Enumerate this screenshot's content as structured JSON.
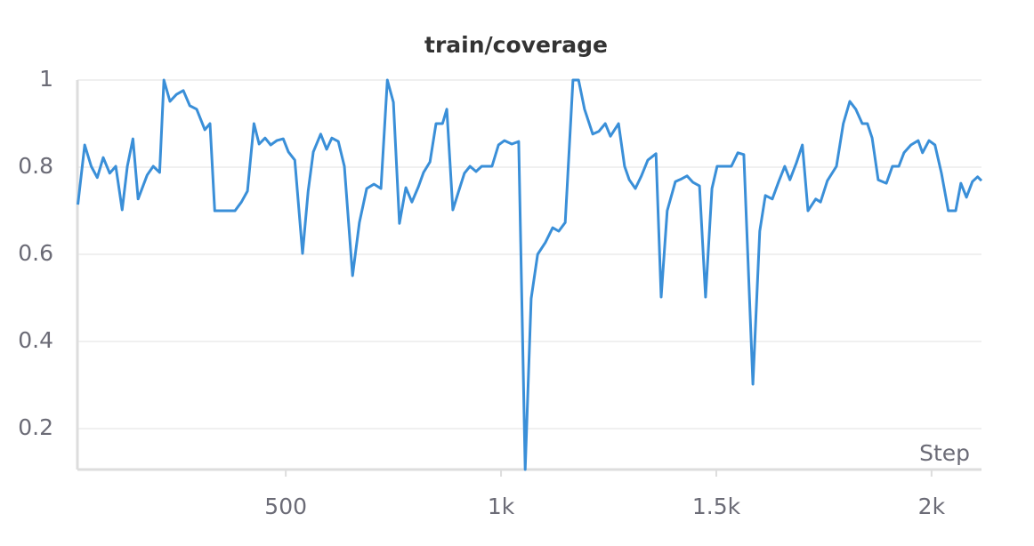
{
  "chart_data": {
    "type": "line",
    "title": "train/coverage",
    "x_label": "Step",
    "x": [
      17,
      33,
      48,
      62,
      76,
      91,
      105,
      120,
      132,
      145,
      157,
      178,
      192,
      207,
      217,
      231,
      246,
      262,
      277,
      293,
      312,
      324,
      335,
      382,
      397,
      411,
      426,
      438,
      452,
      465,
      479,
      494,
      506,
      521,
      539,
      552,
      564,
      581,
      595,
      607,
      622,
      636,
      655,
      671,
      688,
      705,
      721,
      736,
      750,
      764,
      779,
      793,
      808,
      820,
      835,
      849,
      864,
      874,
      888,
      903,
      915,
      928,
      942,
      955,
      979,
      994,
      1008,
      1025,
      1041,
      1056,
      1070,
      1085,
      1103,
      1120,
      1134,
      1149,
      1167,
      1180,
      1194,
      1213,
      1227,
      1242,
      1254,
      1273,
      1287,
      1298,
      1312,
      1326,
      1341,
      1360,
      1372,
      1386,
      1405,
      1419,
      1432,
      1446,
      1461,
      1475,
      1490,
      1502,
      1535,
      1550,
      1564,
      1585,
      1601,
      1614,
      1630,
      1645,
      1659,
      1671,
      1686,
      1700,
      1713,
      1731,
      1742,
      1758,
      1779,
      1795,
      1810,
      1824,
      1839,
      1851,
      1862,
      1876,
      1895,
      1909,
      1924,
      1936,
      1952,
      1969,
      1979,
      1994,
      2008,
      2023,
      2039,
      2056,
      2068,
      2081,
      2095,
      2107,
      2116
    ],
    "series": [
      {
        "name": "train/coverage",
        "color": "#3a8fd8",
        "values": [
          0.714,
          0.851,
          0.802,
          0.776,
          0.822,
          0.786,
          0.802,
          0.702,
          0.802,
          0.865,
          0.727,
          0.782,
          0.802,
          0.788,
          1.0,
          0.951,
          0.967,
          0.976,
          0.941,
          0.933,
          0.886,
          0.9,
          0.7,
          0.7,
          0.72,
          0.745,
          0.9,
          0.853,
          0.867,
          0.851,
          0.861,
          0.865,
          0.835,
          0.816,
          0.602,
          0.745,
          0.835,
          0.876,
          0.841,
          0.867,
          0.859,
          0.802,
          0.551,
          0.673,
          0.751,
          0.761,
          0.751,
          1.0,
          0.949,
          0.671,
          0.753,
          0.72,
          0.755,
          0.788,
          0.812,
          0.9,
          0.9,
          0.933,
          0.702,
          0.749,
          0.786,
          0.802,
          0.79,
          0.802,
          0.802,
          0.851,
          0.861,
          0.853,
          0.859,
          0.106,
          0.498,
          0.6,
          0.627,
          0.661,
          0.653,
          0.673,
          1.0,
          1.0,
          0.933,
          0.876,
          0.882,
          0.9,
          0.871,
          0.9,
          0.802,
          0.771,
          0.751,
          0.78,
          0.816,
          0.831,
          0.502,
          0.7,
          0.767,
          0.773,
          0.78,
          0.765,
          0.757,
          0.502,
          0.751,
          0.802,
          0.802,
          0.833,
          0.829,
          0.302,
          0.653,
          0.735,
          0.727,
          0.767,
          0.802,
          0.771,
          0.81,
          0.851,
          0.7,
          0.727,
          0.72,
          0.769,
          0.802,
          0.9,
          0.951,
          0.933,
          0.9,
          0.9,
          0.867,
          0.771,
          0.763,
          0.802,
          0.802,
          0.833,
          0.851,
          0.861,
          0.833,
          0.861,
          0.851,
          0.786,
          0.7,
          0.7,
          0.763,
          0.731,
          0.767,
          0.778,
          0.769
        ]
      }
    ],
    "xlim": [
      16,
      2116
    ],
    "ylim": [
      0.106,
      1
    ],
    "xticks": [
      500,
      {
        "value": 1000,
        "label": "1k"
      },
      {
        "value": 1500,
        "label": "1.5k"
      },
      {
        "value": 2000,
        "label": "2k"
      }
    ],
    "yticks": [
      0.2,
      0.4,
      0.6,
      0.8,
      1
    ],
    "grid": true
  }
}
